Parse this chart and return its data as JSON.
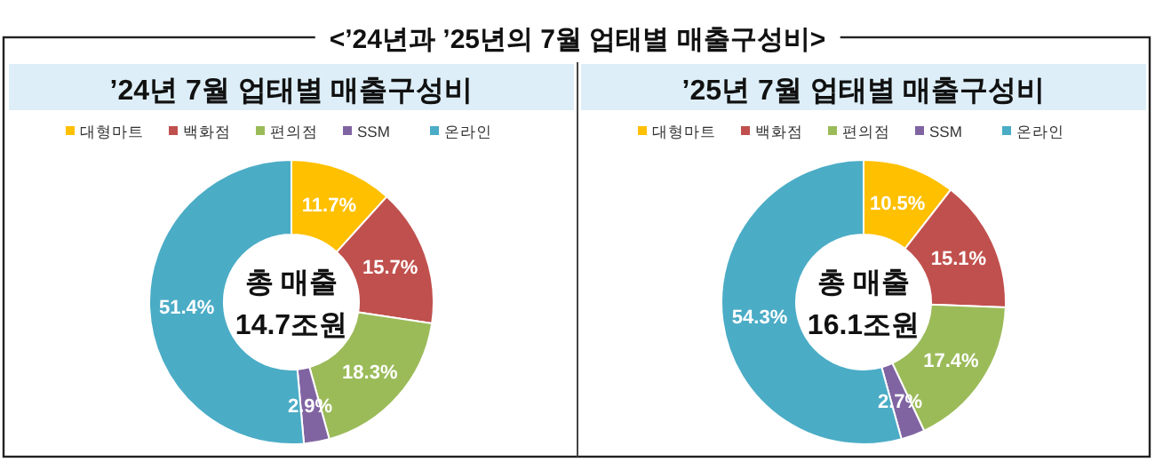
{
  "chart_data": [
    {
      "type": "donut",
      "title": "’24년 7월 업태별 매출구성비",
      "categories": [
        "대형마트",
        "백화점",
        "편의점",
        "SSM",
        "온라인"
      ],
      "values": [
        11.7,
        15.7,
        18.3,
        2.9,
        51.4
      ],
      "colors": [
        "#ffc000",
        "#c0504d",
        "#9bbb59",
        "#8064a2",
        "#4bacc6"
      ],
      "value_labels": [
        "11.7%",
        "15.7%",
        "18.3%",
        "2.9%",
        "51.4%"
      ],
      "legend": "top",
      "annotations": [
        "<’24년과 ’25년의 7월 업태별 매출구성비>",
        "총 매출",
        "14.7조원"
      ]
    },
    {
      "type": "donut",
      "title": "’25년 7월 업태별 매출구성비",
      "categories": [
        "대형마트",
        "백화점",
        "편의점",
        "SSM",
        "온라인"
      ],
      "values": [
        10.5,
        15.1,
        17.4,
        2.7,
        54.3
      ],
      "colors": [
        "#ffc000",
        "#c0504d",
        "#9bbb59",
        "#8064a2",
        "#4bacc6"
      ],
      "value_labels": [
        "10.5%",
        "15.1%",
        "17.4%",
        "2.7%",
        "54.3%"
      ],
      "legend": "top",
      "annotations": [
        "총 매출",
        "16.1조원"
      ]
    }
  ]
}
